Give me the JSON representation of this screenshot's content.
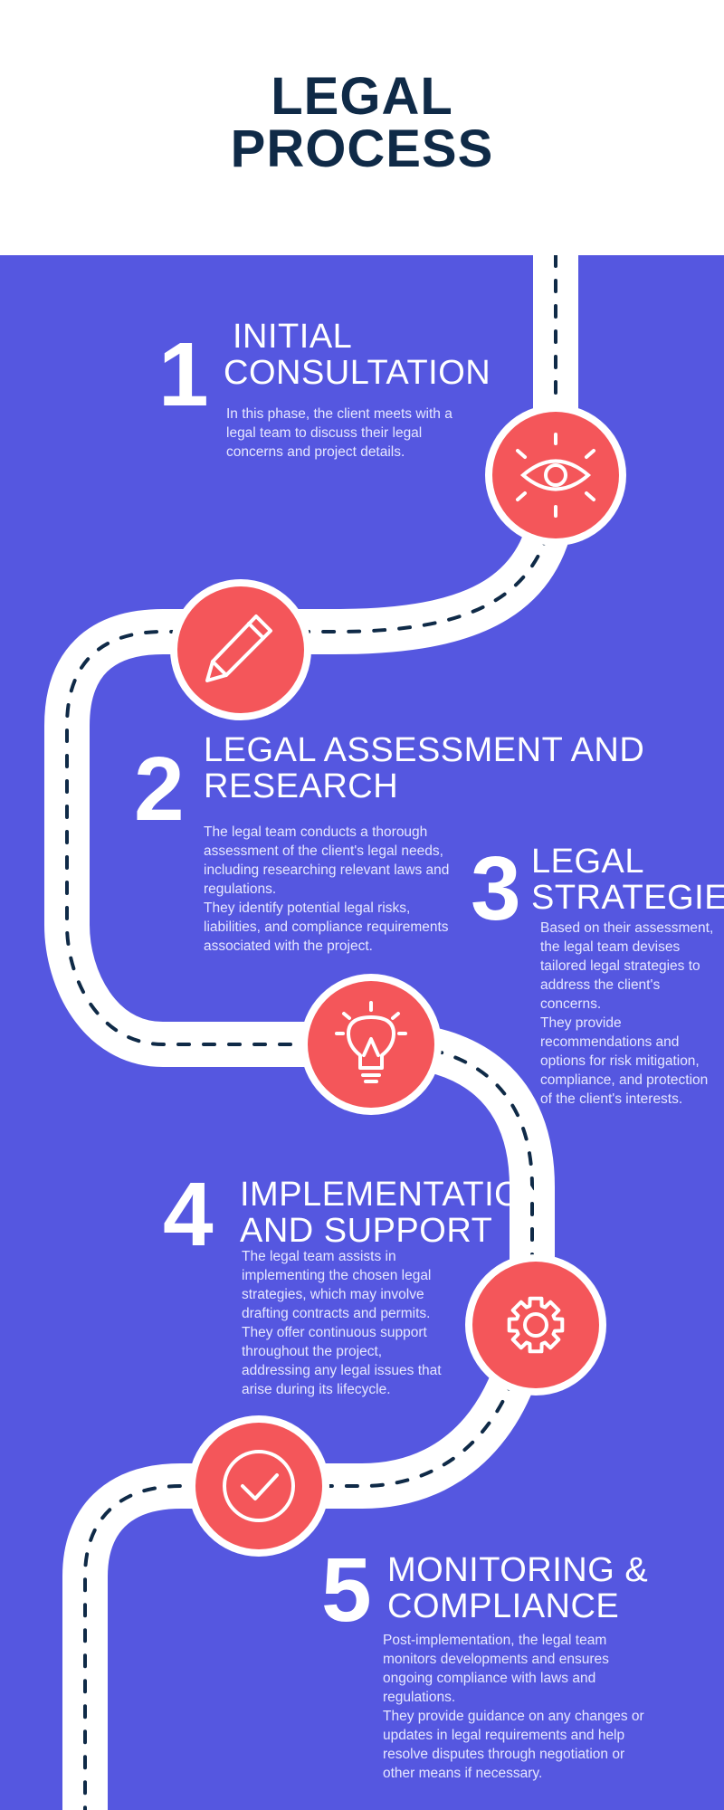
{
  "title": {
    "line1": "LEGAL",
    "line2": "PROCESS"
  },
  "colors": {
    "background": "#5557e0",
    "header_bg": "#ffffff",
    "title": "#0f2a47",
    "circle": "#f4565a",
    "road": "#ffffff",
    "dash": "#0f2a47"
  },
  "steps": [
    {
      "number": "1",
      "heading_line1": "INITIAL",
      "heading_line2": "CONSULTATION",
      "icon": "eye-icon",
      "paragraphs": [
        "In this phase, the client meets with a legal team to discuss their legal concerns and project details."
      ]
    },
    {
      "number": "2",
      "heading_line1": "LEGAL ASSESSMENT AND",
      "heading_line2": "RESEARCH",
      "icon": "pencil-icon",
      "paragraphs": [
        "The legal team conducts a thorough assessment of the client's legal needs, including researching relevant laws and regulations.",
        "They identify potential legal risks, liabilities, and compliance requirements associated with the project."
      ]
    },
    {
      "number": "3",
      "heading_line1": "LEGAL",
      "heading_line2": "STRATEGIES",
      "icon": "lightbulb-icon",
      "paragraphs": [
        "Based on their assessment, the legal team devises tailored legal strategies to address the client's concerns.",
        "They provide recommendations and options for risk mitigation, compliance, and protection of the client's interests."
      ]
    },
    {
      "number": "4",
      "heading_line1": "IMPLEMENTATION",
      "heading_line2": "AND SUPPORT",
      "icon": "gear-icon",
      "paragraphs": [
        "The legal team assists in implementing the chosen legal strategies, which may involve drafting contracts and permits.",
        "They offer continuous support throughout the project, addressing any legal issues that arise during its lifecycle."
      ]
    },
    {
      "number": "5",
      "heading_line1": "MONITORING &",
      "heading_line2": "COMPLIANCE",
      "icon": "checkmark-icon",
      "paragraphs": [
        "Post-implementation, the legal team monitors developments and ensures ongoing compliance with laws and regulations.",
        "They provide guidance on any changes or updates in legal requirements and help resolve disputes through negotiation or other means if necessary."
      ]
    }
  ]
}
